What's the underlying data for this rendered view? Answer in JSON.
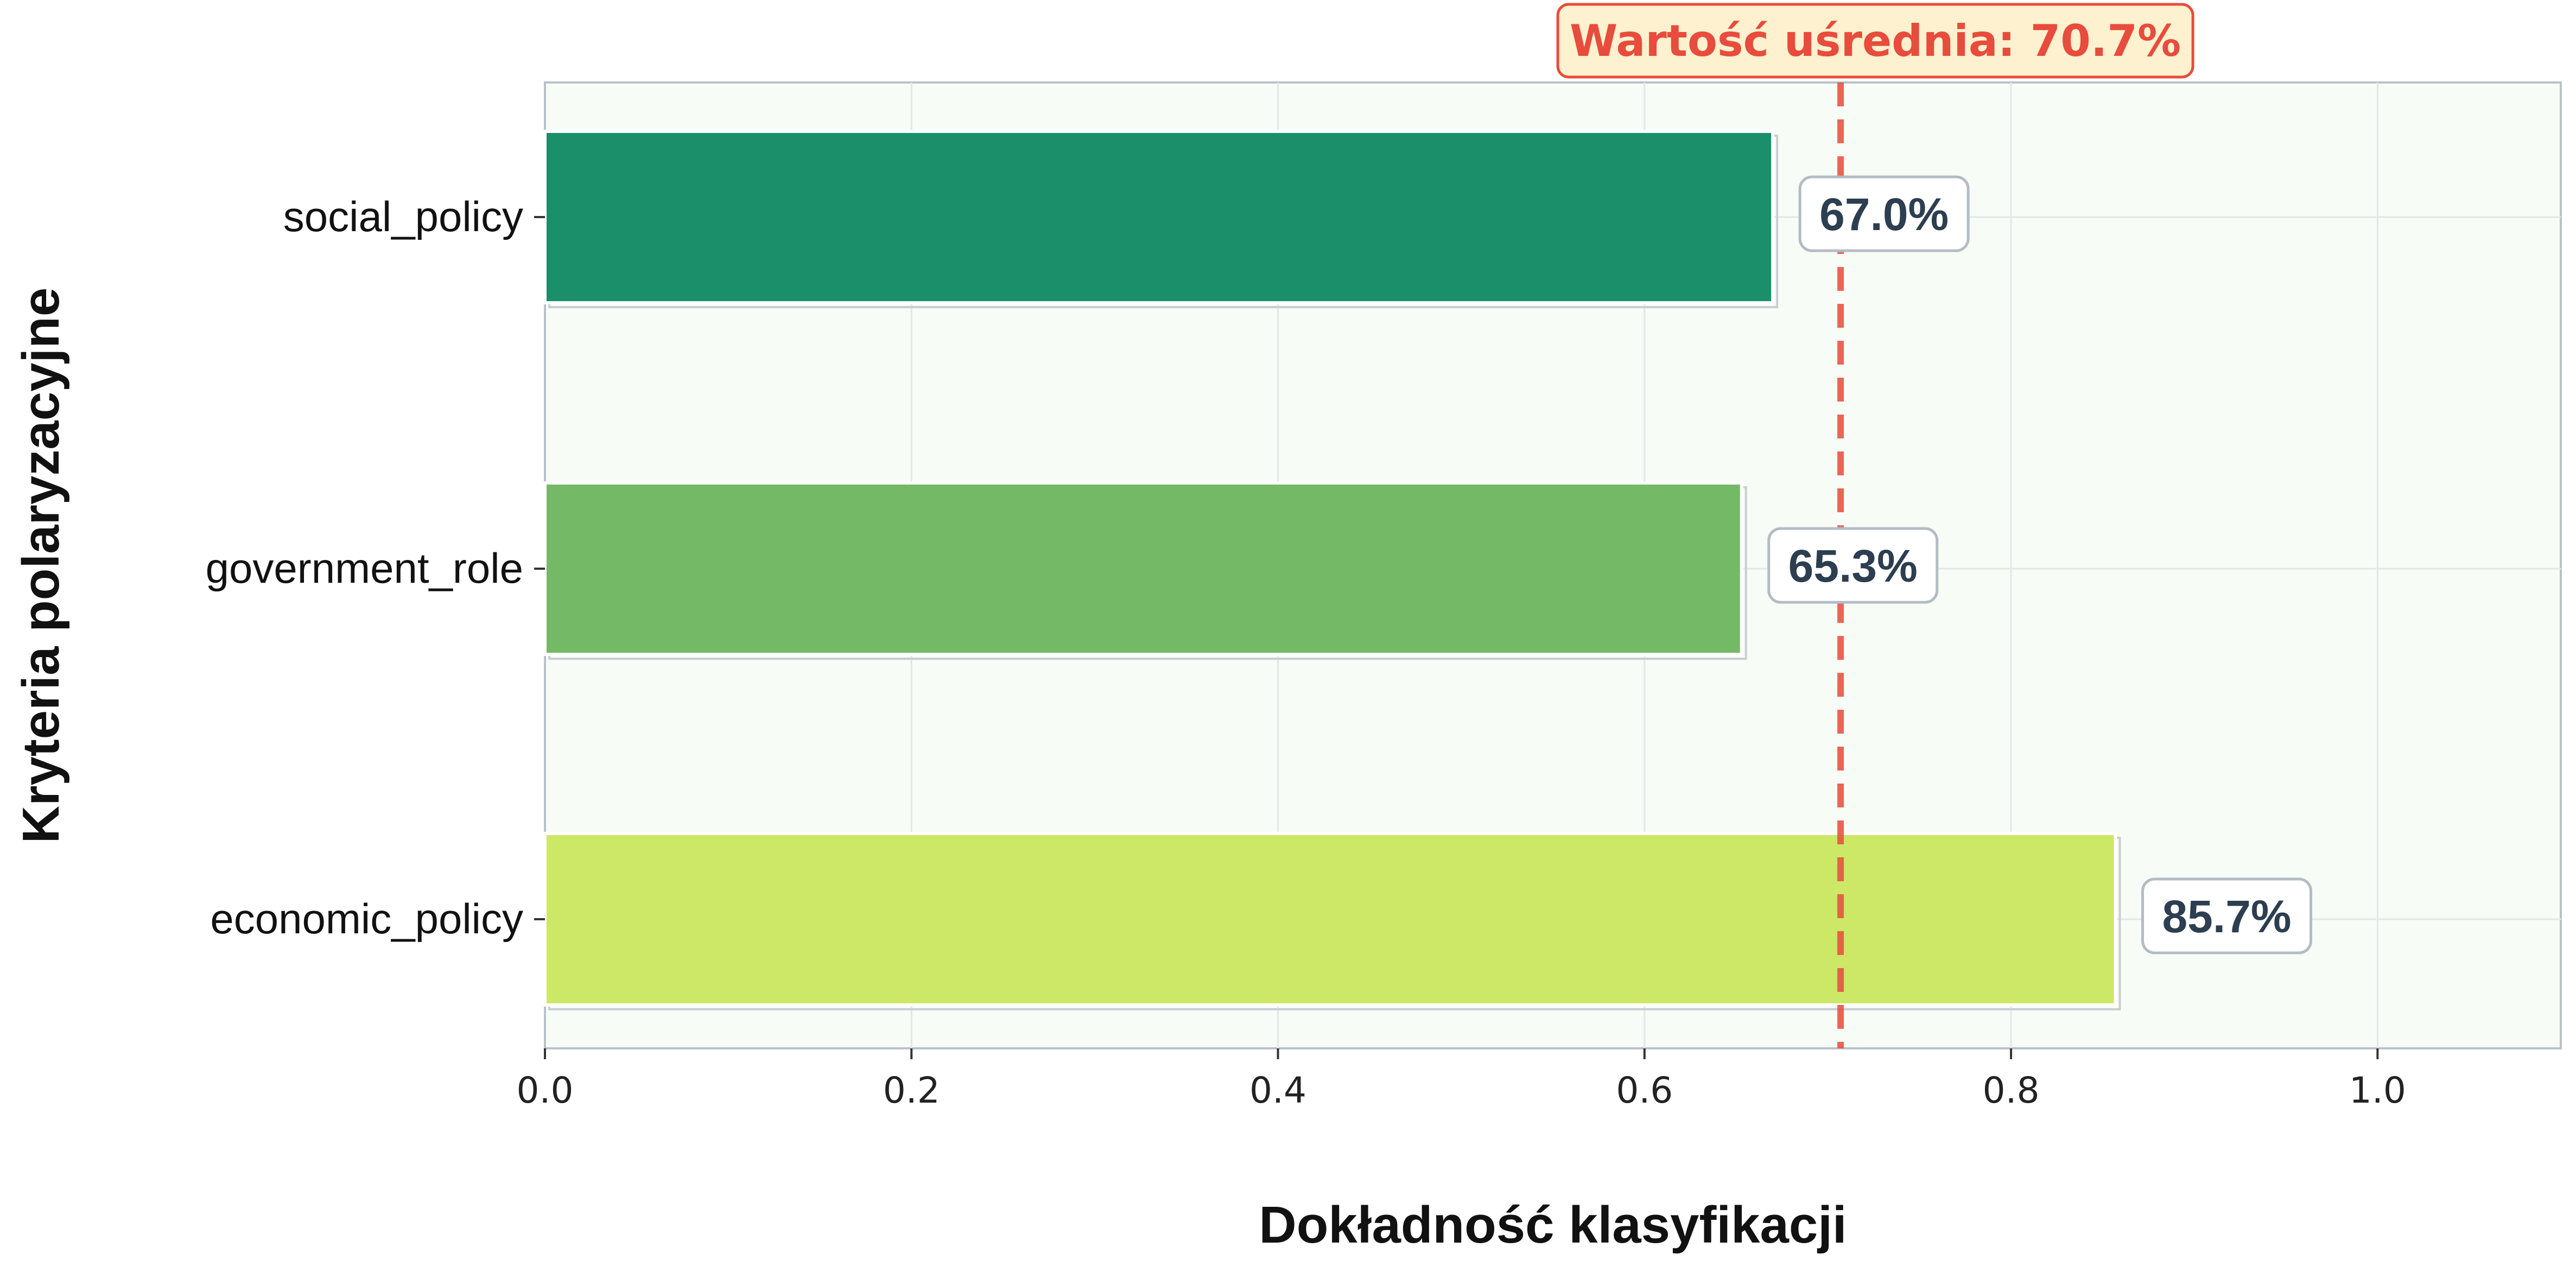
{
  "chart_data": {
    "type": "bar",
    "orientation": "horizontal",
    "categories": [
      "social_policy",
      "government_role",
      "economic_policy"
    ],
    "values": [
      0.67,
      0.653,
      0.857
    ],
    "value_labels": [
      "67.0%",
      "65.3%",
      "85.7%"
    ],
    "bar_colors": [
      "#1b8f69",
      "#74b966",
      "#cde766"
    ],
    "xlabel": "Dokładność klasyfikacji",
    "ylabel": "Kryteria polaryzacyjne",
    "xlim": [
      0,
      1.1
    ],
    "xticks": [
      0.0,
      0.2,
      0.4,
      0.6,
      0.8,
      1.0
    ],
    "xtick_labels": [
      "0.0",
      "0.2",
      "0.4",
      "0.6",
      "0.8",
      "1.0"
    ],
    "grid": true,
    "mean_line": {
      "value": 0.707,
      "label": "Wartość uśrednia: 70.7%",
      "color": "#e74c3c"
    },
    "plot_background": "#f7fcf7",
    "value_label_color": "#2c3e50"
  }
}
